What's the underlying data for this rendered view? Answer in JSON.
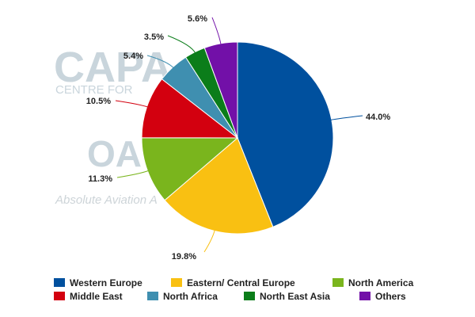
{
  "watermark": {
    "brand": "CAPA",
    "subtitle": "CENTRE FOR",
    "logo2": "OA",
    "tagline": "Absolute Aviation A"
  },
  "chart_data": {
    "type": "pie",
    "start_angle_deg": 0,
    "direction": "clockwise",
    "slices": [
      {
        "name": "Western Europe",
        "value": 44.0,
        "label": "44.0%",
        "color": "#00509e"
      },
      {
        "name": "Eastern/ Central Europe",
        "value": 19.8,
        "label": "19.8%",
        "color": "#f9c012"
      },
      {
        "name": "North America",
        "value": 11.3,
        "label": "11.3%",
        "color": "#7ab51d"
      },
      {
        "name": "Middle East",
        "value": 10.5,
        "label": "10.5%",
        "color": "#d3000f"
      },
      {
        "name": "North Africa",
        "value": 5.4,
        "label": "5.4%",
        "color": "#3f8fb0"
      },
      {
        "name": "North East Asia",
        "value": 3.5,
        "label": "3.5%",
        "color": "#0b7d1a"
      },
      {
        "name": "Others",
        "value": 5.6,
        "label": "5.6%",
        "color": "#7210a8"
      }
    ],
    "legend_position": "bottom"
  }
}
